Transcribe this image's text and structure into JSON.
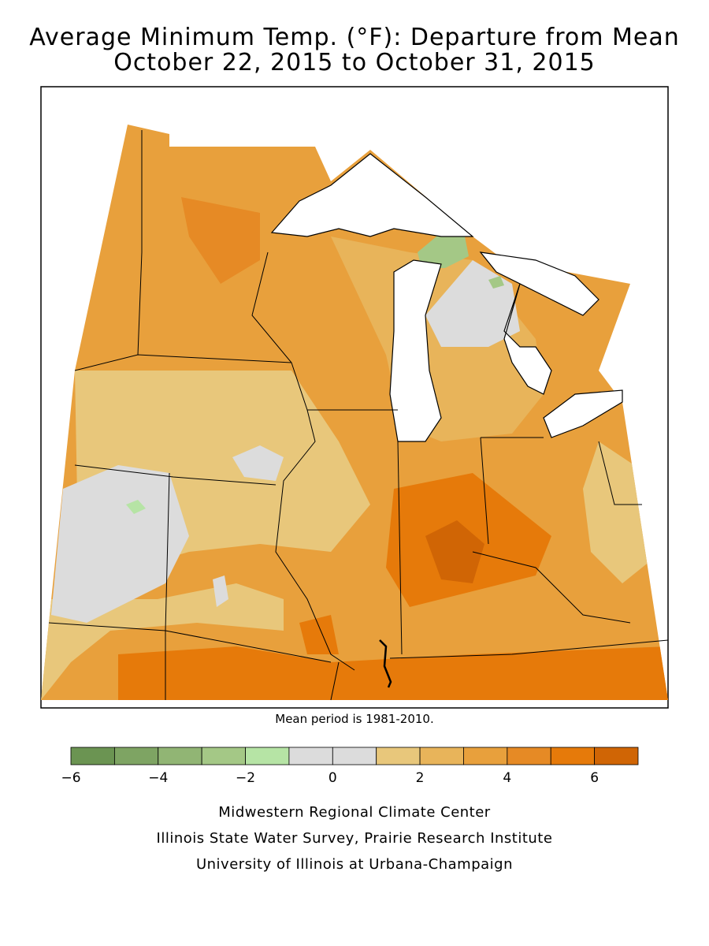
{
  "title_line1": "Average Minimum Temp. (°F): Departure from Mean",
  "title_line2": "October 22, 2015 to October 31, 2015",
  "mean_period_note": "Mean period is 1981-2010.",
  "legend": {
    "colors": [
      "#6b9452",
      "#7ea463",
      "#91b574",
      "#a4c886",
      "#b6e4a5",
      "#dcdcdc",
      "#dcdcdc",
      "#e8c77b",
      "#e8b45a",
      "#e8a03c",
      "#e68a25",
      "#e67a0a",
      "#d06505"
    ],
    "tick_labels": [
      "-6",
      "-4",
      "-2",
      "0",
      "2",
      "4",
      "6"
    ]
  },
  "credits": [
    "Midwestern Regional Climate Center",
    "Illinois State Water Survey, Prairie Research Institute",
    "University of Illinois at Urbana-Champaign"
  ]
}
